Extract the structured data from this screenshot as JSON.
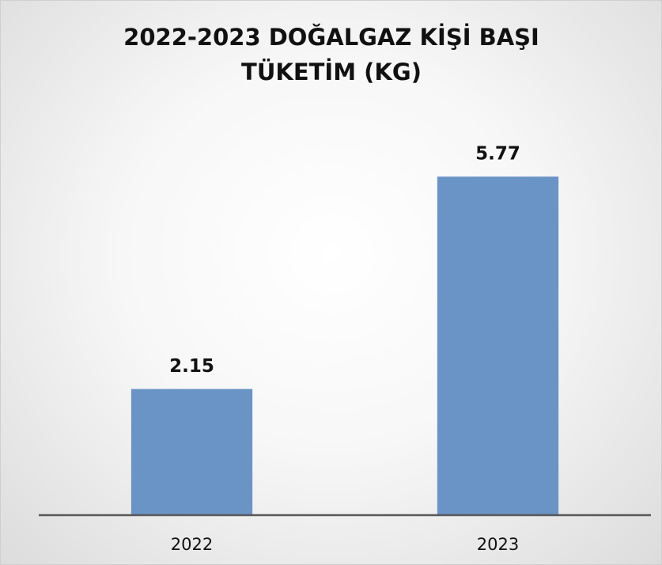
{
  "chart_data": {
    "type": "bar",
    "title": "2022-2023 DOĞALGAZ KİŞİ BAŞI TÜKETİM (KG)",
    "categories": [
      "2022",
      "2023"
    ],
    "values": [
      2.15,
      5.77
    ],
    "color": "#6a93c6",
    "ylim": [
      0,
      7
    ]
  }
}
